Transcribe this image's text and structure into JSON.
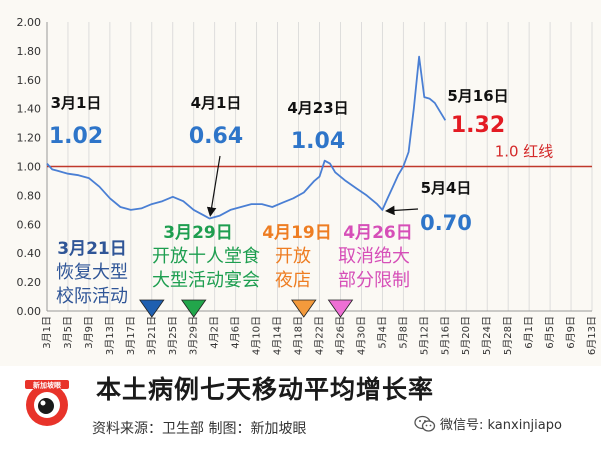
{
  "chart_data": {
    "type": "line",
    "title": "本土病例七天移动平均增长率",
    "ylim": [
      0,
      2.0
    ],
    "yticks": [
      "0.00",
      "0.20",
      "0.40",
      "0.60",
      "0.80",
      "1.00",
      "1.20",
      "1.40",
      "1.60",
      "1.80",
      "2.00"
    ],
    "x_tick_labels": [
      "3月1日",
      "3月5日",
      "3月9日",
      "3月13日",
      "3月17日",
      "3月21日",
      "3月25日",
      "3月29日",
      "4月2日",
      "4月6日",
      "4月10日",
      "4月14日",
      "4月18日",
      "4月22日",
      "4月26日",
      "4月30日",
      "5月4日",
      "5月8日",
      "5月12日",
      "5月16日",
      "5月20日",
      "5月24日",
      "5月28日",
      "6月1日",
      "6月5日",
      "6月9日",
      "6月13日"
    ],
    "x_start": "3月1日",
    "x_end": "6月13日",
    "grid": "vertical",
    "reference_line": {
      "y": 1.0,
      "label": "1.0 红线",
      "color": "#c0392b"
    },
    "series": [
      {
        "color": "#4a7fd4",
        "x": [
          "3月1日",
          "3月2日",
          "3月3日",
          "3月4日",
          "3月5日",
          "3月7日",
          "3月9日",
          "3月11日",
          "3月13日",
          "3月15日",
          "3月17日",
          "3月19日",
          "3月21日",
          "3月23日",
          "3月25日",
          "3月27日",
          "3月29日",
          "3月31日",
          "4月1日",
          "4月3日",
          "4月5日",
          "4月7日",
          "4月9日",
          "4月11日",
          "4月13日",
          "4月15日",
          "4月17日",
          "4月19日",
          "4月21日",
          "4月22日",
          "4月23日",
          "4月24日",
          "4月25日",
          "4月27日",
          "4月29日",
          "5月1日",
          "5月3日",
          "5月4日",
          "5月5日",
          "5月6日",
          "5月7日",
          "5月8日",
          "5月9日",
          "5月10日",
          "5月11日",
          "5月12日",
          "5月13日",
          "5月14日",
          "5月15日",
          "5月16日"
        ],
        "values": [
          1.02,
          0.98,
          0.97,
          0.96,
          0.95,
          0.94,
          0.92,
          0.86,
          0.78,
          0.72,
          0.7,
          0.71,
          0.74,
          0.76,
          0.79,
          0.76,
          0.7,
          0.66,
          0.64,
          0.66,
          0.7,
          0.72,
          0.74,
          0.74,
          0.72,
          0.75,
          0.78,
          0.82,
          0.9,
          0.93,
          1.04,
          1.02,
          0.96,
          0.9,
          0.85,
          0.8,
          0.74,
          0.7,
          0.78,
          0.86,
          0.94,
          1.0,
          1.1,
          1.4,
          1.76,
          1.48,
          1.47,
          1.44,
          1.38,
          1.32
        ]
      }
    ],
    "annotations": [
      {
        "date": "3月1日",
        "value": "1.02",
        "value_color": "#2e75c9"
      },
      {
        "date": "4月1日",
        "value": "0.64",
        "value_color": "#2e75c9"
      },
      {
        "date": "4月23日",
        "value": "1.04",
        "value_color": "#2e75c9"
      },
      {
        "date": "5月16日",
        "value": "1.32",
        "value_color": "#e31b23"
      },
      {
        "date": "5月4日",
        "value": "0.70",
        "value_color": "#2e75c9"
      }
    ],
    "events": [
      {
        "date": "3月21日",
        "lines": [
          "恢复大型",
          "校际活动"
        ],
        "color": "#2f5597",
        "marker_color": "#1f5fb0"
      },
      {
        "date": "3月29日",
        "lines": [
          "开放十人堂食",
          "大型活动宴会"
        ],
        "color": "#1e9e50",
        "marker_color": "#22a64b"
      },
      {
        "date": "4月19日",
        "lines": [
          "开放",
          "夜店"
        ],
        "color": "#ee7d22",
        "marker_color": "#f39a3c"
      },
      {
        "date": "4月26日",
        "lines": [
          "取消绝大",
          "部分限制"
        ],
        "color": "#d64fb8",
        "marker_color": "#ee6fd4"
      }
    ]
  },
  "footer": {
    "title": "本土病例七天移动平均增长率",
    "source": "资料来源：卫生部     制图：新加坡眼",
    "logo_text": "新加坡眼",
    "wechat": "微信号: kanxinjiapo"
  }
}
